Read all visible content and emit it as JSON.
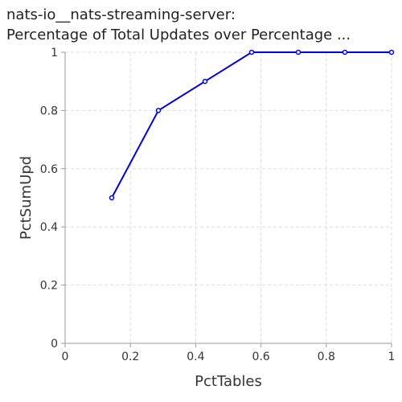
{
  "chart_data": {
    "type": "line",
    "title_lines": [
      "nats-io__nats-streaming-server:",
      "Percentage of Total Updates over Percentage ..."
    ],
    "xlabel": "PctTables",
    "ylabel": "PctSumUpd",
    "xlim": [
      0,
      1
    ],
    "ylim": [
      0,
      1
    ],
    "xticks": [
      "0",
      "0.2",
      "0.4",
      "0.6",
      "0.8",
      "1"
    ],
    "yticks": [
      "0",
      "0.2",
      "0.4",
      "0.6",
      "0.8",
      "1"
    ],
    "grid": true,
    "series": [
      {
        "x": [
          0.1429,
          0.2857,
          0.4286,
          0.5714,
          0.7143,
          0.8571,
          1.0
        ],
        "y": [
          0.5,
          0.8,
          0.9,
          1.0,
          1.0,
          1.0,
          1.0
        ],
        "color": "#0000dd"
      }
    ]
  }
}
